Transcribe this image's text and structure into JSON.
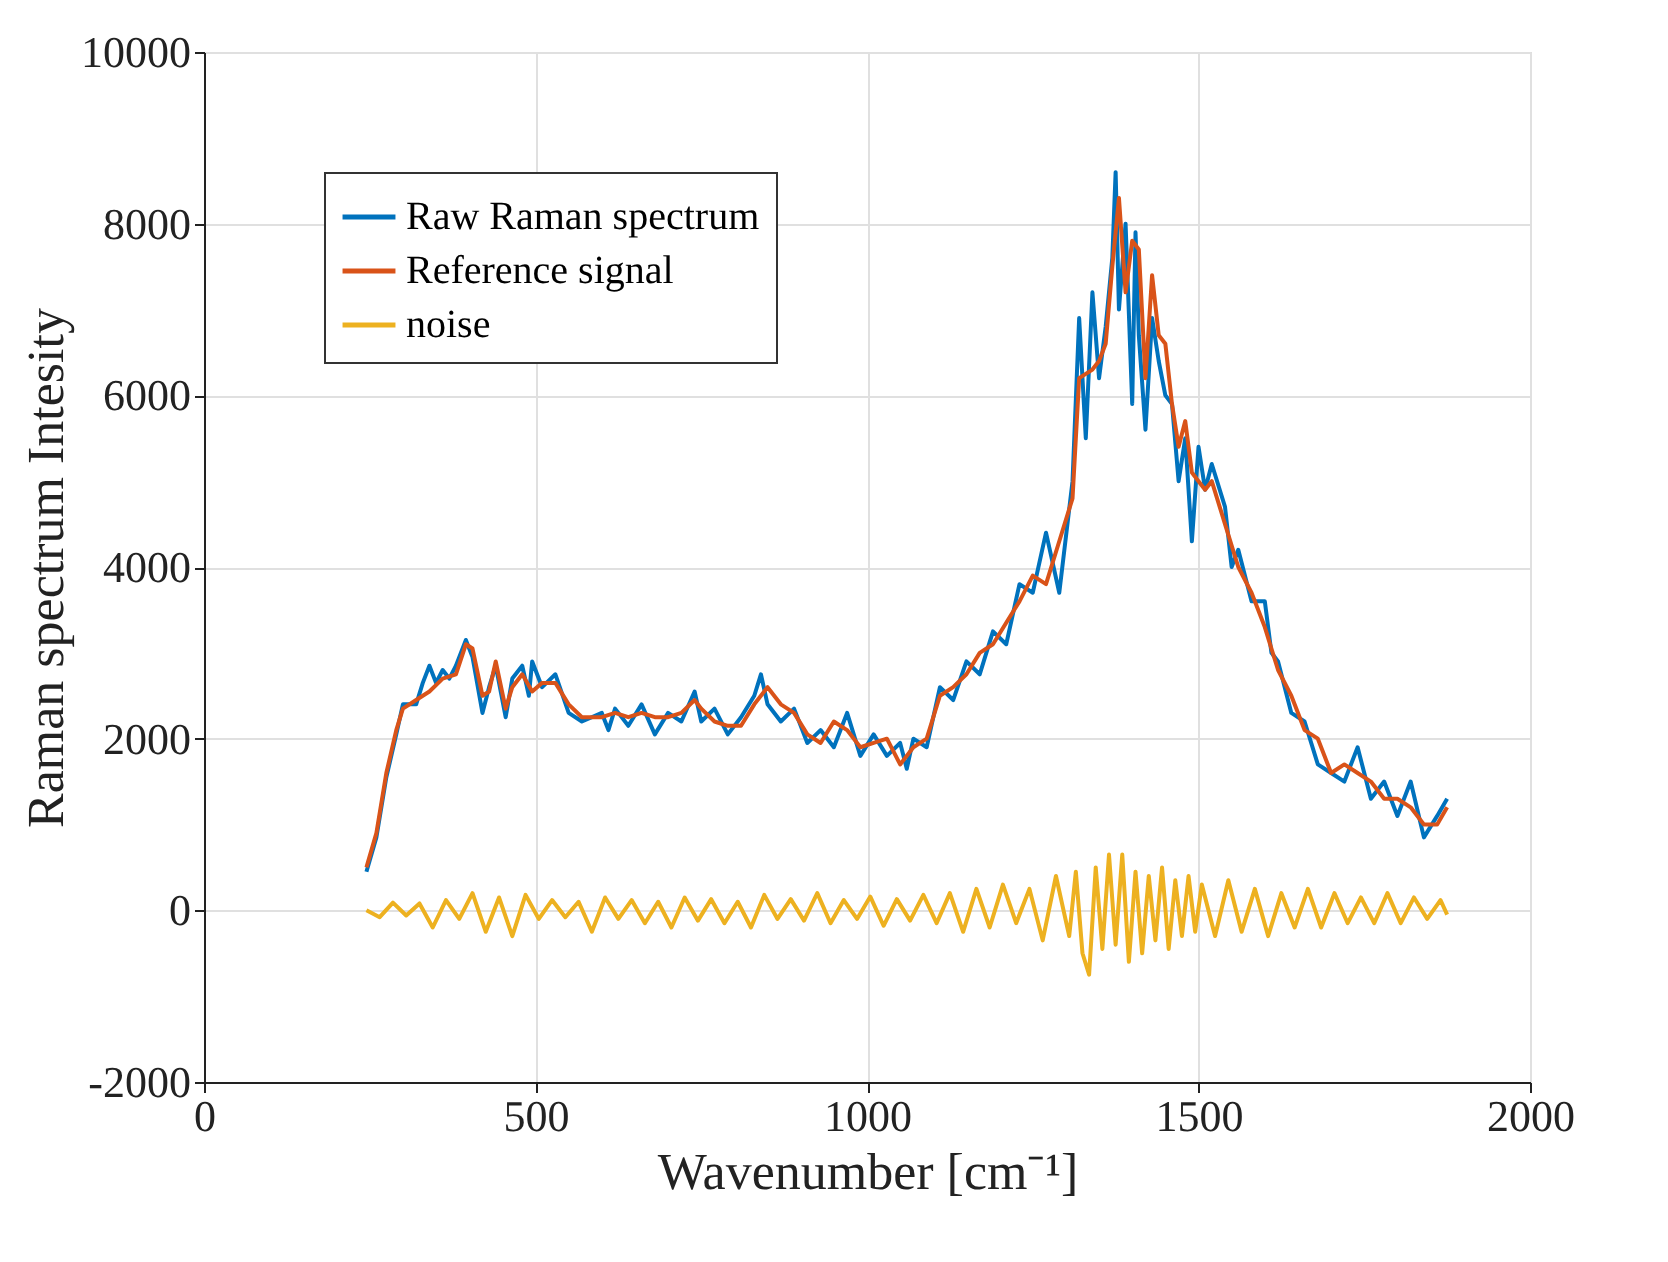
{
  "chart_data": {
    "type": "line",
    "xlabel": "Wavenumber [cm⁻¹]",
    "ylabel": "Raman spectrum Intesity",
    "xlim": [
      0,
      2000
    ],
    "xticks": [
      0,
      500,
      1000,
      1500,
      2000
    ],
    "ylim": [
      -2000,
      10000
    ],
    "yticks": [
      -2000,
      0,
      2000,
      4000,
      6000,
      8000,
      10000
    ],
    "grid": true,
    "legend": "top left",
    "line_style": "solid",
    "marker": "none",
    "series": [
      {
        "name": "Raw Raman spectrum",
        "color": "#0072bd",
        "x": [
          245,
          260,
          275,
          290,
          300,
          320,
          330,
          340,
          350,
          360,
          370,
          380,
          395,
          405,
          420,
          430,
          440,
          455,
          465,
          480,
          490,
          495,
          510,
          530,
          550,
          570,
          600,
          610,
          620,
          640,
          660,
          680,
          700,
          720,
          740,
          750,
          770,
          790,
          810,
          830,
          840,
          850,
          870,
          890,
          910,
          930,
          950,
          970,
          990,
          1010,
          1030,
          1050,
          1060,
          1070,
          1090,
          1110,
          1130,
          1150,
          1170,
          1190,
          1210,
          1230,
          1250,
          1270,
          1290,
          1310,
          1320,
          1330,
          1340,
          1350,
          1360,
          1370,
          1375,
          1380,
          1390,
          1400,
          1405,
          1410,
          1420,
          1430,
          1440,
          1450,
          1460,
          1470,
          1480,
          1490,
          1500,
          1510,
          1520,
          1540,
          1550,
          1560,
          1580,
          1600,
          1610,
          1620,
          1640,
          1660,
          1680,
          1700,
          1720,
          1740,
          1760,
          1780,
          1800,
          1820,
          1840,
          1860,
          1875
        ],
        "values": [
          450,
          850,
          1550,
          2050,
          2400,
          2400,
          2650,
          2850,
          2650,
          2800,
          2700,
          2850,
          3150,
          2950,
          2300,
          2600,
          2850,
          2250,
          2700,
          2850,
          2500,
          2900,
          2600,
          2750,
          2300,
          2200,
          2300,
          2100,
          2350,
          2150,
          2400,
          2050,
          2300,
          2200,
          2550,
          2200,
          2350,
          2050,
          2250,
          2500,
          2750,
          2400,
          2200,
          2350,
          1950,
          2100,
          1900,
          2300,
          1800,
          2050,
          1800,
          1950,
          1650,
          2000,
          1900,
          2600,
          2450,
          2900,
          2750,
          3250,
          3100,
          3800,
          3700,
          4400,
          3700,
          5000,
          6900,
          5500,
          7200,
          6200,
          6800,
          7600,
          8600,
          7000,
          8000,
          5900,
          7900,
          6700,
          5600,
          6900,
          6400,
          6000,
          5900,
          5000,
          5500,
          4300,
          5400,
          4900,
          5200,
          4700,
          4000,
          4200,
          3600,
          3600,
          3000,
          2900,
          2300,
          2200,
          1700,
          1600,
          1500,
          1900,
          1300,
          1500,
          1100,
          1500,
          850,
          1100,
          1300
        ]
      },
      {
        "name": "Reference signal",
        "color": "#d95319",
        "x": [
          245,
          260,
          275,
          290,
          300,
          320,
          340,
          360,
          380,
          395,
          405,
          420,
          430,
          440,
          455,
          465,
          480,
          495,
          510,
          530,
          550,
          570,
          600,
          620,
          640,
          660,
          680,
          700,
          720,
          740,
          750,
          770,
          790,
          810,
          830,
          850,
          870,
          890,
          910,
          930,
          950,
          970,
          990,
          1010,
          1030,
          1050,
          1070,
          1090,
          1110,
          1130,
          1150,
          1170,
          1190,
          1210,
          1230,
          1250,
          1270,
          1290,
          1310,
          1320,
          1340,
          1350,
          1360,
          1370,
          1380,
          1390,
          1400,
          1410,
          1420,
          1430,
          1440,
          1450,
          1460,
          1470,
          1480,
          1490,
          1500,
          1510,
          1520,
          1540,
          1560,
          1580,
          1600,
          1620,
          1640,
          1660,
          1680,
          1700,
          1720,
          1740,
          1760,
          1780,
          1800,
          1820,
          1840,
          1860,
          1875
        ],
        "values": [
          500,
          900,
          1600,
          2100,
          2350,
          2450,
          2550,
          2700,
          2750,
          3100,
          3050,
          2500,
          2550,
          2900,
          2350,
          2600,
          2750,
          2550,
          2650,
          2650,
          2400,
          2250,
          2250,
          2300,
          2250,
          2300,
          2250,
          2250,
          2300,
          2450,
          2350,
          2200,
          2150,
          2150,
          2400,
          2600,
          2400,
          2300,
          2050,
          1950,
          2200,
          2100,
          1900,
          1950,
          2000,
          1700,
          1900,
          2000,
          2500,
          2600,
          2750,
          3000,
          3100,
          3350,
          3600,
          3900,
          3800,
          4300,
          4800,
          6200,
          6300,
          6400,
          6600,
          7500,
          8300,
          7200,
          7800,
          7700,
          6200,
          7400,
          6700,
          6600,
          5900,
          5400,
          5700,
          5100,
          5000,
          4900,
          5000,
          4500,
          4000,
          3700,
          3300,
          2800,
          2500,
          2100,
          2000,
          1600,
          1700,
          1600,
          1500,
          1300,
          1300,
          1200,
          1000,
          1000,
          1200
        ]
      },
      {
        "name": "noise",
        "color": "#edb120",
        "x": [
          245,
          265,
          285,
          305,
          325,
          345,
          365,
          385,
          405,
          425,
          445,
          465,
          485,
          505,
          525,
          545,
          565,
          585,
          605,
          625,
          645,
          665,
          685,
          705,
          725,
          745,
          765,
          785,
          805,
          825,
          845,
          865,
          885,
          905,
          925,
          945,
          965,
          985,
          1005,
          1025,
          1045,
          1065,
          1085,
          1105,
          1125,
          1145,
          1165,
          1185,
          1205,
          1225,
          1245,
          1265,
          1285,
          1305,
          1315,
          1325,
          1335,
          1345,
          1355,
          1365,
          1375,
          1385,
          1395,
          1405,
          1415,
          1425,
          1435,
          1445,
          1455,
          1465,
          1475,
          1485,
          1495,
          1505,
          1525,
          1545,
          1565,
          1585,
          1605,
          1625,
          1645,
          1665,
          1685,
          1705,
          1725,
          1745,
          1765,
          1785,
          1805,
          1825,
          1845,
          1865,
          1875
        ],
        "values": [
          0,
          -80,
          90,
          -60,
          80,
          -200,
          120,
          -100,
          200,
          -250,
          150,
          -300,
          180,
          -100,
          120,
          -80,
          100,
          -250,
          150,
          -100,
          120,
          -150,
          100,
          -200,
          150,
          -120,
          130,
          -150,
          100,
          -200,
          180,
          -100,
          130,
          -120,
          200,
          -150,
          120,
          -100,
          160,
          -180,
          130,
          -120,
          180,
          -150,
          200,
          -250,
          250,
          -200,
          300,
          -150,
          250,
          -350,
          400,
          -300,
          450,
          -500,
          -750,
          500,
          -450,
          650,
          -400,
          650,
          -600,
          450,
          -500,
          400,
          -350,
          500,
          -450,
          350,
          -300,
          400,
          -250,
          300,
          -300,
          350,
          -250,
          250,
          -300,
          200,
          -200,
          250,
          -200,
          200,
          -150,
          150,
          -150,
          200,
          -150,
          150,
          -100,
          120,
          -50
        ]
      }
    ]
  }
}
